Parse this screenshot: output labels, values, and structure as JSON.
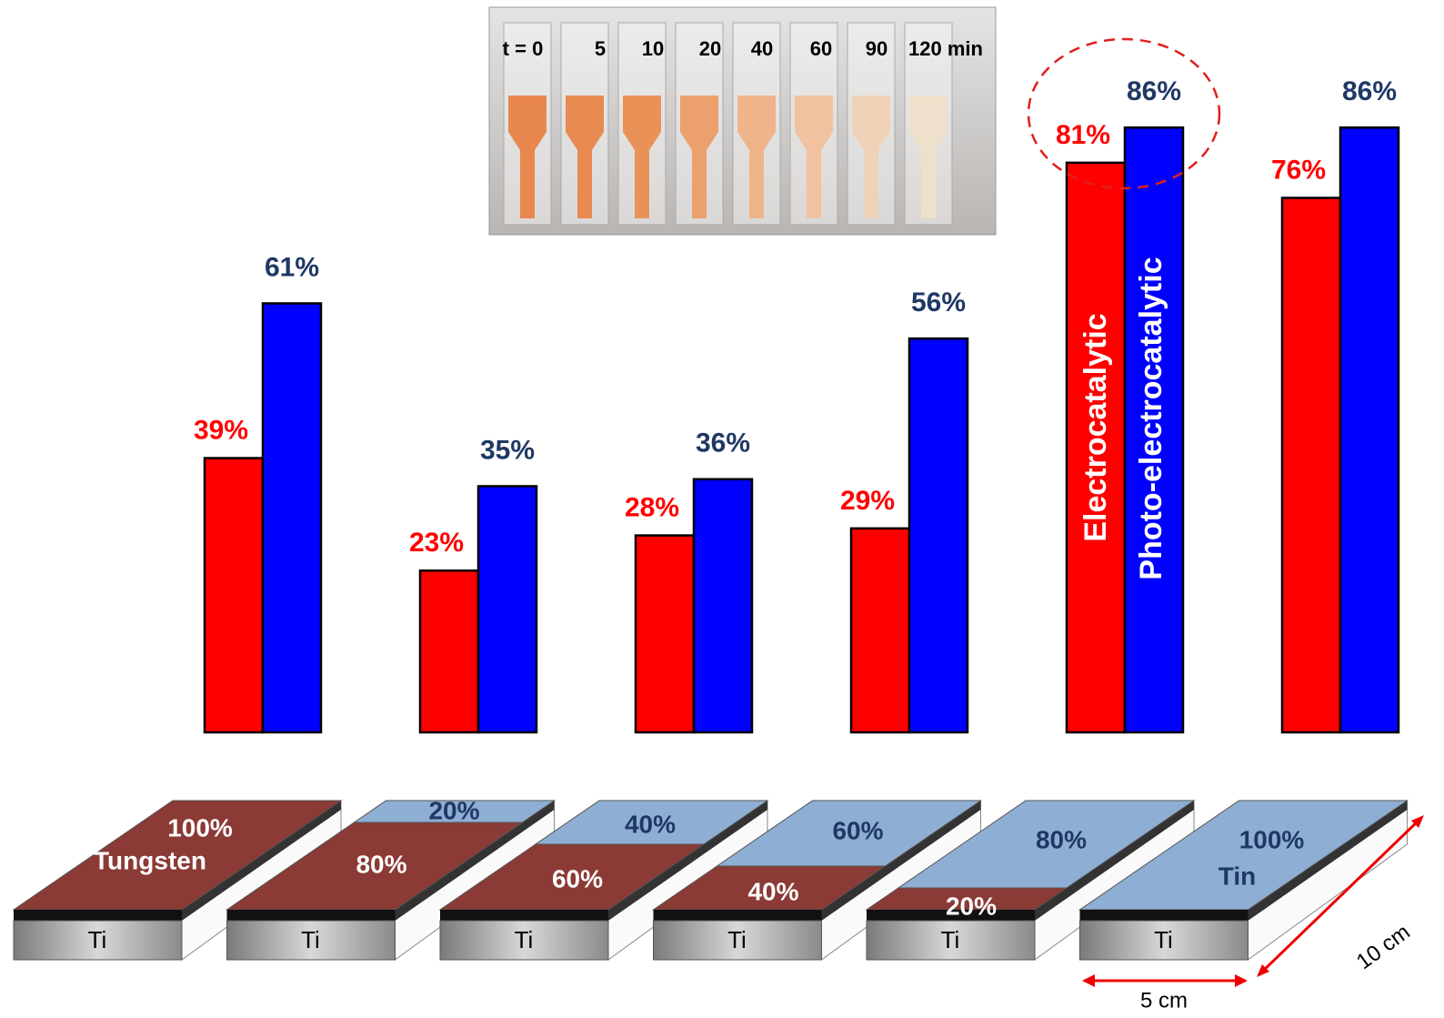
{
  "chart_data": {
    "type": "bar",
    "series": [
      {
        "name": "Electrocatalytic",
        "color": "#ff0000",
        "values": [
          39,
          23,
          28,
          29,
          81,
          76
        ],
        "value_labels": [
          "39%",
          "23%",
          "28%",
          "29%",
          "81%",
          "76%"
        ]
      },
      {
        "name": "Photo-electrocatalytic",
        "color": "#0000ff",
        "values": [
          61,
          35,
          36,
          56,
          86,
          86
        ],
        "value_labels": [
          "61%",
          "35%",
          "36%",
          "56%",
          "86%",
          "86%"
        ]
      }
    ],
    "ylim": [
      0,
      100
    ]
  },
  "photo": {
    "labels": [
      "t = 0",
      "5",
      "10",
      "20",
      "40",
      "60",
      "90",
      "120 min"
    ]
  },
  "electrodes": [
    {
      "w_share": 100,
      "w_label": "100%",
      "w_name": "Tungsten",
      "base": "Ti"
    },
    {
      "w_share": 80,
      "w_label": "80%",
      "sn_label": "20%",
      "base": "Ti"
    },
    {
      "w_share": 60,
      "w_label": "60%",
      "sn_label": "40%",
      "base": "Ti"
    },
    {
      "w_share": 40,
      "w_label": "40%",
      "sn_label": "60%",
      "base": "Ti"
    },
    {
      "w_share": 20,
      "w_label": "20%",
      "sn_label": "80%",
      "base": "Ti"
    },
    {
      "w_share": 0,
      "sn_label": "100%",
      "sn_name": "Tin",
      "base": "Ti"
    }
  ],
  "dimensions": {
    "width": "5 cm",
    "length": "10 cm"
  }
}
